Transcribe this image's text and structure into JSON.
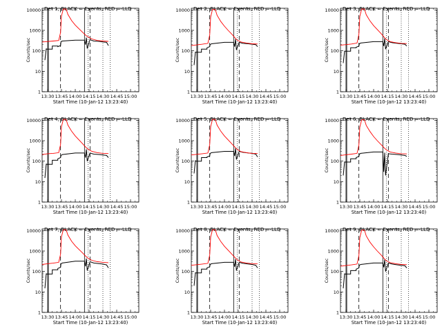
{
  "x_tick_labels": [
    "13:30",
    "13:45",
    "14:00",
    "14:15",
    "14:30",
    "14:45",
    "15:00"
  ],
  "y_tick_labels": [
    "1",
    "10",
    "100",
    "1000",
    "10000"
  ],
  "ylabel": "Counts/sec",
  "xlabel": "Start Time (10-Jan-12 13:23:40)",
  "colors": {
    "events": "#000000",
    "lld": "#ff0000"
  },
  "chart_data": [
    {
      "type": "line",
      "title": "Det 1, BLACK = Events, RED = LLD",
      "ylabel": "Counts/sec",
      "xlabel": "Start Time (10-Jan-12 13:23:40)",
      "yscale": "log",
      "ylim": [
        1,
        12000
      ],
      "xlim_minutes": [
        -6,
        99
      ],
      "vlines_dashed": [
        14,
        46
      ],
      "vlines_solid": [
        0,
        0.8,
        40
      ],
      "vlines_dotted": [
        44,
        60,
        68
      ],
      "series": [
        {
          "name": "Events",
          "color": "#000000",
          "x": [
            -3,
            -1.5,
            -1.5,
            5,
            5,
            11,
            11,
            14,
            14.5,
            16,
            30,
            40,
            41,
            42,
            43,
            46,
            50,
            56,
            60,
            64,
            66
          ],
          "y": [
            35,
            130,
            120,
            120,
            170,
            170,
            160,
            180,
            280,
            300,
            330,
            330,
            200,
            440,
            130,
            350,
            300,
            290,
            270,
            260,
            180
          ]
        },
        {
          "name": "LLD",
          "color": "#ff0000",
          "x": [
            -6,
            0,
            6,
            12,
            14,
            15,
            17,
            20,
            22,
            26,
            30,
            34,
            38,
            42,
            44,
            48,
            54,
            60,
            66
          ],
          "y": [
            270,
            285,
            300,
            320,
            800,
            5000,
            11000,
            11000,
            6000,
            3000,
            1800,
            1200,
            800,
            540,
            480,
            380,
            320,
            300,
            290
          ]
        }
      ]
    },
    {
      "type": "line",
      "title": "Det 2, BLACK = Events, RED = LLD",
      "ylabel": "Counts/sec",
      "xlabel": "Start Time (10-Jan-12 13:23:40)",
      "yscale": "log",
      "ylim": [
        1,
        12000
      ],
      "xlim_minutes": [
        -6,
        99
      ],
      "vlines_dashed": [
        14,
        46
      ],
      "vlines_solid": [
        0,
        0.8,
        40
      ],
      "vlines_dotted": [
        44,
        60,
        68
      ],
      "series": [
        {
          "name": "Events",
          "color": "#000000",
          "x": [
            -3,
            -1.5,
            -1.5,
            5,
            5,
            11,
            11,
            14,
            14.5,
            16,
            30,
            40,
            41,
            42,
            43,
            46,
            50,
            56,
            60,
            64,
            66
          ],
          "y": [
            20,
            90,
            85,
            85,
            120,
            120,
            140,
            160,
            200,
            220,
            260,
            260,
            160,
            370,
            110,
            260,
            230,
            220,
            210,
            200,
            160
          ]
        },
        {
          "name": "LLD",
          "color": "#ff0000",
          "x": [
            -6,
            0,
            6,
            12,
            14,
            15,
            17,
            20,
            22,
            26,
            30,
            34,
            38,
            42,
            44,
            48,
            54,
            60,
            66
          ],
          "y": [
            180,
            195,
            210,
            230,
            600,
            4500,
            10500,
            10500,
            5500,
            2700,
            1600,
            1000,
            650,
            400,
            330,
            270,
            240,
            220,
            215
          ]
        }
      ]
    },
    {
      "type": "line",
      "title": "Det 3, BLACK = Events, RED = LLD",
      "ylabel": "Counts/sec",
      "xlabel": "Start Time (10-Jan-12 13:23:40)",
      "yscale": "log",
      "ylim": [
        1,
        12000
      ],
      "xlim_minutes": [
        -6,
        99
      ],
      "vlines_dashed": [
        14,
        46
      ],
      "vlines_solid": [
        0,
        0.8,
        40
      ],
      "vlines_dotted": [
        44,
        60,
        68
      ],
      "series": [
        {
          "name": "Events",
          "color": "#000000",
          "x": [
            -3,
            -1.5,
            -1.5,
            5,
            5,
            11,
            11,
            14,
            14.5,
            16,
            30,
            40,
            41,
            42,
            43,
            46,
            50,
            56,
            60,
            64,
            66
          ],
          "y": [
            25,
            100,
            95,
            95,
            140,
            140,
            150,
            170,
            220,
            240,
            280,
            280,
            170,
            400,
            120,
            280,
            250,
            230,
            220,
            210,
            170
          ]
        },
        {
          "name": "LLD",
          "color": "#ff0000",
          "x": [
            -6,
            0,
            6,
            12,
            14,
            15,
            17,
            20,
            22,
            26,
            30,
            34,
            38,
            42,
            44,
            48,
            54,
            60,
            66
          ],
          "y": [
            190,
            200,
            215,
            240,
            650,
            4800,
            11000,
            11000,
            5800,
            2900,
            1700,
            1100,
            700,
            430,
            350,
            280,
            250,
            230,
            225
          ]
        }
      ]
    },
    {
      "type": "line",
      "title": "Det 4, BLACK = Events, RED = LLD",
      "ylabel": "Counts/sec",
      "xlabel": "Start Time (10-Jan-12 13:23:40)",
      "yscale": "log",
      "ylim": [
        1,
        12000
      ],
      "xlim_minutes": [
        -6,
        99
      ],
      "vlines_dashed": [
        14,
        46
      ],
      "vlines_solid": [
        0,
        0.8,
        40
      ],
      "vlines_dotted": [
        44,
        60,
        68
      ],
      "series": [
        {
          "name": "Events",
          "color": "#000000",
          "x": [
            -3,
            -1.5,
            -1.5,
            5,
            5,
            11,
            11,
            14,
            14.5,
            16,
            30,
            40,
            41,
            42,
            43,
            46,
            50,
            56,
            60,
            64,
            66
          ],
          "y": [
            15,
            75,
            70,
            70,
            110,
            110,
            130,
            150,
            190,
            210,
            250,
            250,
            150,
            380,
            100,
            250,
            220,
            210,
            200,
            190,
            150
          ]
        },
        {
          "name": "LLD",
          "color": "#ff0000",
          "x": [
            -6,
            0,
            6,
            12,
            14,
            15,
            17,
            20,
            22,
            26,
            30,
            34,
            38,
            42,
            44,
            48,
            54,
            60,
            66
          ],
          "y": [
            210,
            230,
            240,
            260,
            650,
            4800,
            11000,
            11000,
            5800,
            2900,
            1700,
            1100,
            700,
            450,
            380,
            300,
            260,
            240,
            235
          ]
        }
      ]
    },
    {
      "type": "line",
      "title": "Det 5, BLACK = Events, RED = LLD",
      "ylabel": "Counts/sec",
      "xlabel": "Start Time (10-Jan-12 13:23:40)",
      "yscale": "log",
      "ylim": [
        1,
        12000
      ],
      "xlim_minutes": [
        -6,
        99
      ],
      "vlines_dashed": [
        14,
        46
      ],
      "vlines_solid": [
        0,
        0.8,
        40
      ],
      "vlines_dotted": [
        44,
        60,
        68
      ],
      "series": [
        {
          "name": "Events",
          "color": "#000000",
          "x": [
            -3,
            -1.5,
            -1.5,
            5,
            5,
            11,
            11,
            14,
            14.5,
            16,
            30,
            40,
            41,
            42,
            43,
            46,
            50,
            56,
            60,
            64,
            66
          ],
          "y": [
            25,
            110,
            100,
            100,
            150,
            150,
            160,
            180,
            240,
            260,
            300,
            300,
            180,
            420,
            120,
            300,
            270,
            250,
            240,
            220,
            160
          ]
        },
        {
          "name": "LLD",
          "color": "#ff0000",
          "x": [
            -6,
            0,
            6,
            12,
            14,
            15,
            17,
            20,
            22,
            26,
            30,
            34,
            38,
            42,
            44,
            48,
            54,
            60,
            66
          ],
          "y": [
            200,
            215,
            230,
            250,
            650,
            4800,
            11000,
            11000,
            5800,
            2900,
            1700,
            1100,
            700,
            450,
            370,
            290,
            260,
            240,
            235
          ]
        }
      ]
    },
    {
      "type": "line",
      "title": "Det 6, BLACK = Events, RED = LLD",
      "ylabel": "Counts/sec",
      "xlabel": "Start Time (10-Jan-12 13:23:40)",
      "yscale": "log",
      "ylim": [
        1,
        12000
      ],
      "xlim_minutes": [
        -6,
        99
      ],
      "vlines_dashed": [
        14,
        46
      ],
      "vlines_solid": [
        0,
        0.8,
        40
      ],
      "vlines_dotted": [
        44,
        60,
        68
      ],
      "series": [
        {
          "name": "Events",
          "color": "#000000",
          "x": [
            -3,
            -1.5,
            -1.5,
            5,
            5,
            11,
            11,
            14,
            14.5,
            16,
            30,
            40,
            41,
            42,
            43,
            46,
            50,
            56,
            60,
            64,
            66
          ],
          "y": [
            20,
            95,
            90,
            90,
            130,
            130,
            150,
            170,
            220,
            240,
            280,
            280,
            30,
            260,
            20,
            230,
            220,
            210,
            200,
            190,
            170
          ]
        },
        {
          "name": "LLD",
          "color": "#ff0000",
          "x": [
            -6,
            0,
            6,
            12,
            14,
            15,
            17,
            20,
            22,
            26,
            30,
            34,
            38,
            42,
            44,
            48,
            54,
            60,
            66
          ],
          "y": [
            190,
            205,
            220,
            240,
            620,
            4600,
            10500,
            10500,
            5600,
            2800,
            1600,
            1000,
            650,
            420,
            350,
            280,
            250,
            230,
            225
          ]
        }
      ]
    },
    {
      "type": "line",
      "title": "Det 7, BLACK = Events, RED = LLD",
      "ylabel": "Counts/sec",
      "xlabel": "Start Time (10-Jan-12 13:23:40)",
      "yscale": "log",
      "ylim": [
        1,
        12000
      ],
      "xlim_minutes": [
        -6,
        99
      ],
      "vlines_dashed": [
        14,
        46
      ],
      "vlines_solid": [
        0,
        0.8,
        40
      ],
      "vlines_dotted": [
        44,
        60,
        68
      ],
      "series": [
        {
          "name": "Events",
          "color": "#000000",
          "x": [
            -3,
            -1.5,
            -1.5,
            5,
            5,
            11,
            11,
            14,
            14.5,
            16,
            30,
            40,
            41,
            42,
            43,
            46,
            50,
            56,
            60,
            64,
            66
          ],
          "y": [
            15,
            80,
            75,
            75,
            120,
            120,
            140,
            160,
            240,
            260,
            320,
            320,
            180,
            430,
            110,
            300,
            260,
            240,
            230,
            210,
            150
          ]
        },
        {
          "name": "LLD",
          "color": "#ff0000",
          "x": [
            -6,
            0,
            6,
            12,
            14,
            15,
            17,
            20,
            22,
            26,
            30,
            34,
            38,
            42,
            44,
            48,
            54,
            60,
            66
          ],
          "y": [
            220,
            240,
            255,
            280,
            700,
            5000,
            11000,
            11000,
            6000,
            3000,
            1800,
            1200,
            800,
            520,
            440,
            350,
            300,
            280,
            270
          ]
        }
      ]
    },
    {
      "type": "line",
      "title": "Det 8, BLACK = Events, RED = LLD",
      "ylabel": "Counts/sec",
      "xlabel": "Start Time (10-Jan-12 13:23:40)",
      "yscale": "log",
      "ylim": [
        1,
        12000
      ],
      "xlim_minutes": [
        -6,
        99
      ],
      "vlines_dashed": [
        14,
        46
      ],
      "vlines_solid": [
        0,
        0.8,
        40
      ],
      "vlines_dotted": [
        44,
        60,
        68
      ],
      "series": [
        {
          "name": "Events",
          "color": "#000000",
          "x": [
            -3,
            -1.5,
            -1.5,
            5,
            5,
            11,
            11,
            14,
            14.5,
            16,
            30,
            40,
            41,
            42,
            43,
            46,
            50,
            56,
            60,
            64,
            66
          ],
          "y": [
            20,
            90,
            85,
            85,
            130,
            130,
            150,
            170,
            220,
            240,
            280,
            280,
            170,
            400,
            110,
            280,
            250,
            230,
            220,
            200,
            150
          ]
        },
        {
          "name": "LLD",
          "color": "#ff0000",
          "x": [
            -6,
            0,
            6,
            12,
            14,
            15,
            17,
            20,
            22,
            26,
            30,
            34,
            38,
            42,
            44,
            48,
            54,
            60,
            66
          ],
          "y": [
            200,
            215,
            230,
            250,
            650,
            4800,
            11000,
            11000,
            5800,
            2900,
            1700,
            1100,
            700,
            450,
            370,
            290,
            260,
            240,
            235
          ]
        }
      ]
    },
    {
      "type": "line",
      "title": "Det 9, BLACK = Events, RED = LLD",
      "ylabel": "Counts/sec",
      "xlabel": "Start Time (10-Jan-12 13:23:40)",
      "yscale": "log",
      "ylim": [
        1,
        12000
      ],
      "xlim_minutes": [
        -6,
        99
      ],
      "vlines_dashed": [
        14,
        46
      ],
      "vlines_solid": [
        0,
        0.8,
        40
      ],
      "vlines_dotted": [
        44,
        60,
        68
      ],
      "series": [
        {
          "name": "Events",
          "color": "#000000",
          "x": [
            -3,
            -1.5,
            -1.5,
            5,
            5,
            11,
            11,
            14,
            14.5,
            16,
            30,
            40,
            41,
            42,
            43,
            46,
            50,
            56,
            60,
            64,
            66
          ],
          "y": [
            15,
            80,
            75,
            75,
            110,
            110,
            130,
            150,
            200,
            220,
            260,
            260,
            160,
            380,
            100,
            260,
            230,
            210,
            200,
            190,
            150
          ]
        },
        {
          "name": "LLD",
          "color": "#ff0000",
          "x": [
            -6,
            0,
            6,
            12,
            14,
            15,
            17,
            20,
            22,
            26,
            30,
            34,
            38,
            42,
            44,
            48,
            54,
            60,
            66
          ],
          "y": [
            180,
            195,
            210,
            230,
            600,
            4500,
            10500,
            10500,
            5500,
            2700,
            1600,
            1000,
            650,
            400,
            330,
            270,
            240,
            220,
            215
          ]
        }
      ]
    }
  ]
}
